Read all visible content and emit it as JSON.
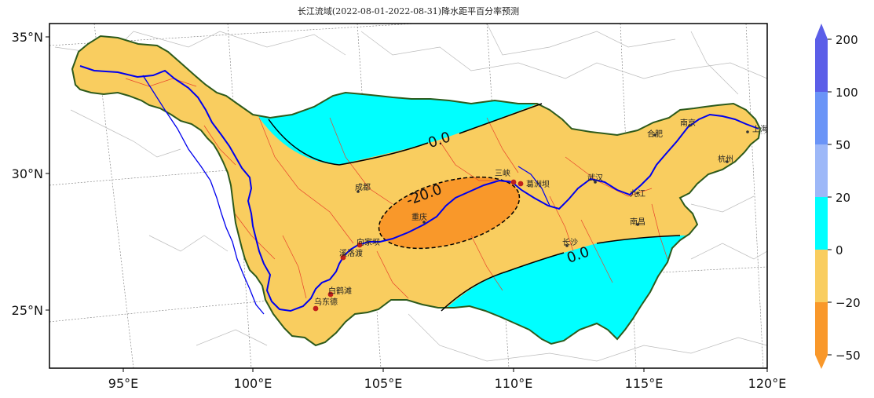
{
  "title": "长江流域(2022-08-01-2022-08-31)降水距平百分率预测",
  "axes": {
    "x_ticks": [
      "95°E",
      "100°E",
      "105°E",
      "110°E",
      "115°E",
      "120°E"
    ],
    "y_ticks": [
      "35°N",
      "30°N",
      "25°N"
    ]
  },
  "contours": {
    "zero_label_1": "0.0",
    "zero_label_2": "0.0",
    "neg20_label": "-20.0"
  },
  "cities": [
    {
      "name": "成都"
    },
    {
      "name": "重庆"
    },
    {
      "name": "三峡"
    },
    {
      "name": "葛洲坝"
    },
    {
      "name": "武汉"
    },
    {
      "name": "合肥"
    },
    {
      "name": "南京"
    },
    {
      "name": "上海"
    },
    {
      "name": "杭州"
    },
    {
      "name": "南昌"
    },
    {
      "name": "长沙"
    },
    {
      "name": "九江"
    },
    {
      "name": "向家坝"
    },
    {
      "name": "溪洛渡"
    },
    {
      "name": "白鹤滩"
    },
    {
      "name": "乌东德"
    }
  ],
  "colorbar": {
    "ticks": [
      "200",
      "100",
      "50",
      "20",
      "0",
      "−20",
      "−50"
    ],
    "colors": [
      "#5b5ee8",
      "#6a94f7",
      "#9db8f8",
      "#00ffff",
      "#f9cd5f",
      "#f9982a"
    ],
    "extend_top_color": "#5b5ee8",
    "extend_bottom_color": "#f9982a"
  },
  "legend_colors": {
    "positive": "#00ffff",
    "slightly_negative": "#f9cd5f",
    "negative": "#f9982a",
    "river": "#0000ee",
    "boundary": "#2d5a1b"
  }
}
